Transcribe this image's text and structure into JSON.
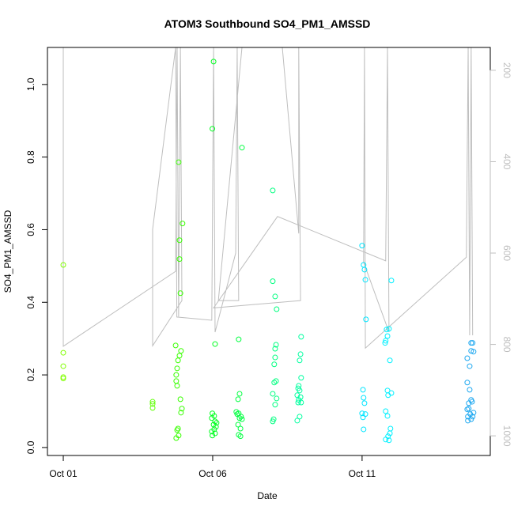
{
  "chart_data": {
    "type": "scatter",
    "title": "ATOM3 Southbound SO4_PM1_AMSSD",
    "x_label": "Date",
    "y_label": "SO4_PM1_AMSSD",
    "xlim": [
      0.47,
      15.29
    ],
    "xticks": [
      {
        "value": 1,
        "label": "Oct 01"
      },
      {
        "value": 6,
        "label": "Oct 06"
      },
      {
        "value": 11,
        "label": "Oct 11"
      }
    ],
    "ylim": [
      -0.022,
      1.102
    ],
    "yticks": [
      {
        "value": 0,
        "label": "0.0"
      },
      0.2,
      0.4,
      0.6,
      0.8,
      {
        "value": 1,
        "label": "1.0"
      }
    ],
    "y2lim": [
      1043,
      150
    ],
    "y2ticks": [
      200,
      400,
      600,
      800,
      1000
    ],
    "y2_color": "#bebebe",
    "series": [
      {
        "color": "#80ff00",
        "x": [
          1.0,
          1.0,
          1.0,
          1.0,
          1.0
        ],
        "values": [
          0.503,
          0.261,
          0.224,
          0.194,
          0.19
        ]
      },
      {
        "color": "#5cff00",
        "x": [
          3.99,
          3.99,
          3.99
        ],
        "values": [
          0.126,
          0.12,
          0.109
        ]
      },
      {
        "color": "#38ff00",
        "x": [
          4.86,
          4.99,
          4.89,
          4.89,
          4.92,
          4.76,
          4.94,
          4.89,
          4.84,
          4.81,
          4.78,
          4.78,
          4.81,
          4.92,
          4.97,
          4.94,
          4.84,
          4.81,
          4.86,
          4.78
        ],
        "values": [
          0.786,
          0.617,
          0.571,
          0.519,
          0.425,
          0.281,
          0.266,
          0.253,
          0.24,
          0.218,
          0.2,
          0.183,
          0.17,
          0.133,
          0.107,
          0.096,
          0.052,
          0.048,
          0.033,
          0.026
        ]
      },
      {
        "color": "#00ff20",
        "x": [
          6.03,
          5.99,
          6.08,
          5.99,
          6.05,
          5.97,
          6.08,
          6.03,
          6.11,
          6.05,
          5.97,
          6.08,
          5.99,
          6.13
        ],
        "values": [
          1.063,
          0.878,
          0.285,
          0.094,
          0.087,
          0.081,
          0.072,
          0.063,
          0.057,
          0.05,
          0.044,
          0.039,
          0.033,
          0.068
        ]
      },
      {
        "color": "#00ff40",
        "x": [
          6.98,
          6.87,
          6.9,
          6.85,
          6.79,
          6.87,
          6.95,
          6.82,
          6.9,
          6.98,
          6.85,
          6.93,
          6.87,
          6.93
        ],
        "values": [
          0.826,
          0.298,
          0.148,
          0.133,
          0.098,
          0.094,
          0.085,
          0.092,
          0.081,
          0.078,
          0.063,
          0.052,
          0.035,
          0.031
        ]
      },
      {
        "color": "#00ff80",
        "x": [
          8.01,
          8.01,
          8.09,
          8.14,
          8.12,
          8.09,
          8.09,
          8.06,
          8.12,
          8.06,
          8.01,
          8.14,
          8.09,
          8.04,
          8.01
        ],
        "values": [
          0.708,
          0.458,
          0.416,
          0.381,
          0.283,
          0.272,
          0.248,
          0.229,
          0.183,
          0.179,
          0.148,
          0.135,
          0.118,
          0.078,
          0.072
        ]
      },
      {
        "color": "#00ffa0",
        "x": [
          8.96,
          8.94,
          8.91,
          8.96,
          8.88,
          8.86,
          8.91,
          8.83,
          8.94,
          8.88,
          8.96,
          8.86,
          8.91,
          8.83
        ],
        "values": [
          0.305,
          0.257,
          0.24,
          0.192,
          0.17,
          0.163,
          0.157,
          0.144,
          0.139,
          0.131,
          0.124,
          0.124,
          0.085,
          0.074
        ]
      },
      {
        "color": "#00e5ff",
        "x": [
          11.0,
          11.05,
          11.08,
          11.11,
          11.13,
          11.03,
          11.05,
          11.08,
          11.0,
          11.11,
          11.03,
          11.05
        ],
        "values": [
          0.556,
          0.503,
          0.49,
          0.462,
          0.353,
          0.159,
          0.137,
          0.122,
          0.094,
          0.092,
          0.083,
          0.05
        ]
      },
      {
        "color": "#00f0ff",
        "x": [
          11.98,
          11.82,
          11.9,
          11.85,
          11.79,
          11.77,
          11.93,
          11.85,
          11.98,
          11.87,
          11.79,
          11.85,
          11.95,
          11.93,
          11.87,
          11.79,
          11.9
        ],
        "values": [
          0.46,
          0.325,
          0.327,
          0.307,
          0.294,
          0.288,
          0.24,
          0.157,
          0.15,
          0.144,
          0.1,
          0.087,
          0.052,
          0.039,
          0.031,
          0.022,
          0.02
        ]
      },
      {
        "color": "#1ea8f0",
        "x": [
          14.65,
          14.7,
          14.65,
          14.52,
          14.73,
          14.6,
          14.52,
          14.6,
          14.65,
          14.68,
          14.57,
          14.57,
          14.52,
          14.73,
          14.7,
          14.54,
          14.62,
          14.65,
          14.54
        ],
        "values": [
          0.288,
          0.288,
          0.266,
          0.246,
          0.264,
          0.224,
          0.179,
          0.159,
          0.131,
          0.126,
          0.122,
          0.107,
          0.105,
          0.096,
          0.085,
          0.085,
          0.092,
          0.078,
          0.074
        ]
      }
    ],
    "lines": [
      {
        "axis": "y2",
        "color": "#bebebe",
        "x": [
          1.0,
          1.0,
          4.76,
          4.81,
          4.86,
          4.92,
          4.97,
          3.99,
          3.99,
          4.76,
          4.8,
          5.97,
          6.03,
          6.08,
          6.77,
          6.82,
          6.87,
          6.19,
          6.98,
          8.33,
          8.88,
          8.88,
          8.94,
          6.03,
          8.17,
          11.79,
          11.85,
          11.9,
          11.05,
          11.08,
          11.11,
          14.49,
          14.55,
          14.6,
          14.65,
          14.7
        ],
        "values": [
          150,
          804,
          640,
          150,
          739,
          150,
          704,
          803,
          548,
          150,
          740,
          747,
          150,
          773,
          600,
          150,
          704,
          704,
          150,
          150,
          557,
          150,
          704,
          720,
          520,
          617,
          150,
          773,
          620,
          150,
          808,
          609,
          150,
          780,
          150,
          780
        ]
      }
    ]
  }
}
